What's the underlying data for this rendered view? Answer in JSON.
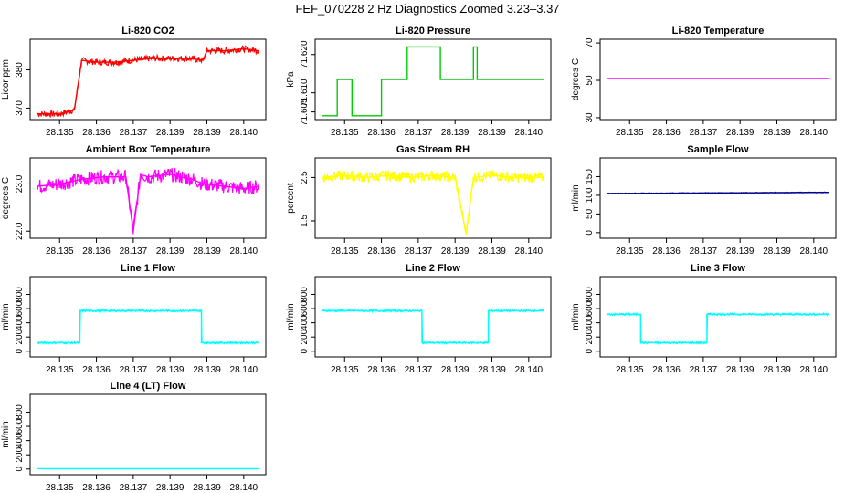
{
  "main_title": "FEF_070228  2 Hz Diagnostics Zoomed 3.23–3.37",
  "colors": {
    "co2": "#ff0000",
    "pressure": "#00cc00",
    "temperature": "#ff00ff",
    "box_temp": "#ff00ff",
    "rh": "#ffff00",
    "sample_flow": "#00008b",
    "line_flow": "#00ffff"
  },
  "chart_data": [
    {
      "type": "line",
      "title": "Li-820 CO2",
      "ylabel": "Licor ppm",
      "xlim": [
        28.1342,
        28.1406
      ],
      "ylim": [
        367,
        388
      ],
      "x_ticks": [
        "28.135",
        "28.136",
        "28.137",
        "28.139",
        "28.139",
        "28.140"
      ],
      "y_ticks": [
        "370",
        "380"
      ],
      "series": [
        {
          "color": "#ff0000",
          "x": [
            28.1344,
            28.135,
            28.1354,
            28.1356,
            28.136,
            28.1365,
            28.137,
            28.1375,
            28.138,
            28.1385,
            28.1389,
            28.139,
            28.1395,
            28.14,
            28.1404
          ],
          "values": [
            368.5,
            368.5,
            369.5,
            382.5,
            382.0,
            382.0,
            382.5,
            383.0,
            383.0,
            383.0,
            382.5,
            385.0,
            385.0,
            385.5,
            385.0
          ]
        }
      ]
    },
    {
      "type": "line",
      "title": "Li-820 Pressure",
      "ylabel": "kPa",
      "xlim": [
        28.1342,
        28.1406
      ],
      "ylim": [
        71.603,
        71.624
      ],
      "x_ticks": [
        "28.135",
        "28.136",
        "28.137",
        "28.139",
        "28.139",
        "28.140"
      ],
      "y_ticks": [
        "71.605",
        "71.610",
        "71.620"
      ],
      "series": [
        {
          "color": "#00cc00",
          "x": [
            28.1344,
            28.1348,
            28.1348,
            28.1352,
            28.1352,
            28.136,
            28.136,
            28.1367,
            28.1367,
            28.1376,
            28.1376,
            28.1385,
            28.1385,
            28.1386,
            28.1386,
            28.1404
          ],
          "values": [
            71.604,
            71.604,
            71.6135,
            71.6135,
            71.604,
            71.604,
            71.6135,
            71.6135,
            71.622,
            71.622,
            71.6135,
            71.6135,
            71.622,
            71.622,
            71.6135,
            71.6135
          ]
        }
      ]
    },
    {
      "type": "line",
      "title": "Li-820 Temperature",
      "ylabel": "degrees C",
      "xlim": [
        28.1342,
        28.1406
      ],
      "ylim": [
        29,
        72
      ],
      "x_ticks": [
        "28.135",
        "28.136",
        "28.137",
        "28.139",
        "28.139",
        "28.140"
      ],
      "y_ticks": [
        "30",
        "50",
        "70"
      ],
      "series": [
        {
          "color": "#ff00ff",
          "x": [
            28.1344,
            28.1404
          ],
          "values": [
            51,
            51
          ]
        }
      ]
    },
    {
      "type": "line",
      "title": "Ambient Box Temperature",
      "ylabel": "degrees C",
      "xlim": [
        28.1342,
        28.1406
      ],
      "ylim": [
        21.85,
        23.55
      ],
      "x_ticks": [
        "28.135",
        "28.136",
        "28.137",
        "28.139",
        "28.139",
        "28.140"
      ],
      "y_ticks": [
        "22.0",
        "23.0"
      ],
      "series": [
        {
          "color": "#ff00ff",
          "x": [
            28.1344,
            28.135,
            28.1356,
            28.1362,
            28.1368,
            28.137,
            28.1372,
            28.1374,
            28.138,
            28.1386,
            28.1389,
            28.1395,
            28.14,
            28.1404
          ],
          "values": [
            22.95,
            23.0,
            23.1,
            23.15,
            23.15,
            22.0,
            23.2,
            23.15,
            23.2,
            23.1,
            23.0,
            22.95,
            22.9,
            22.95
          ]
        }
      ]
    },
    {
      "type": "line",
      "title": "Gas Stream RH",
      "ylabel": "percent",
      "xlim": [
        28.1342,
        28.1406
      ],
      "ylim": [
        1.1,
        2.95
      ],
      "x_ticks": [
        "28.135",
        "28.136",
        "28.137",
        "28.139",
        "28.139",
        "28.140"
      ],
      "y_ticks": [
        "1.5",
        "2.5"
      ],
      "series": [
        {
          "color": "#ffff00",
          "x": [
            28.1344,
            28.135,
            28.1356,
            28.1362,
            28.1368,
            28.1374,
            28.138,
            28.1383,
            28.1385,
            28.139,
            28.1396,
            28.1404
          ],
          "values": [
            2.5,
            2.55,
            2.5,
            2.55,
            2.5,
            2.55,
            2.5,
            1.2,
            2.5,
            2.55,
            2.5,
            2.5
          ]
        }
      ]
    },
    {
      "type": "line",
      "title": "Sample Flow",
      "ylabel": "ml/min",
      "xlim": [
        28.1342,
        28.1406
      ],
      "ylim": [
        -15,
        200
      ],
      "x_ticks": [
        "28.135",
        "28.136",
        "28.137",
        "28.139",
        "28.139",
        "28.140"
      ],
      "y_ticks": [
        "0",
        "50",
        "100",
        "150"
      ],
      "series": [
        {
          "color": "#00008b",
          "x": [
            28.1344,
            28.1404
          ],
          "values": [
            105,
            108
          ]
        }
      ]
    },
    {
      "type": "line",
      "title": "Line 1 Flow",
      "ylabel": "ml/min",
      "xlim": [
        28.1342,
        28.1406
      ],
      "ylim": [
        -80,
        1050
      ],
      "x_ticks": [
        "28.135",
        "28.136",
        "28.137",
        "28.139",
        "28.139",
        "28.140"
      ],
      "y_ticks": [
        "0",
        "200",
        "400",
        "600",
        "800"
      ],
      "series": [
        {
          "color": "#00ffff",
          "x": [
            28.1344,
            28.13555,
            28.13555,
            28.13885,
            28.13885,
            28.1404
          ],
          "values": [
            120,
            120,
            570,
            570,
            120,
            120
          ]
        }
      ]
    },
    {
      "type": "line",
      "title": "Line 2 Flow",
      "ylabel": "ml/min",
      "xlim": [
        28.1342,
        28.1406
      ],
      "ylim": [
        -80,
        1050
      ],
      "x_ticks": [
        "28.135",
        "28.136",
        "28.137",
        "28.139",
        "28.139",
        "28.140"
      ],
      "y_ticks": [
        "0",
        "200",
        "400",
        "600",
        "800"
      ],
      "series": [
        {
          "color": "#00ffff",
          "x": [
            28.1344,
            28.1371,
            28.1371,
            28.1389,
            28.1389,
            28.1404
          ],
          "values": [
            570,
            570,
            120,
            120,
            570,
            570
          ]
        }
      ]
    },
    {
      "type": "line",
      "title": "Line 3 Flow",
      "ylabel": "ml/min",
      "xlim": [
        28.1342,
        28.1406
      ],
      "ylim": [
        -80,
        1050
      ],
      "x_ticks": [
        "28.135",
        "28.136",
        "28.137",
        "28.139",
        "28.139",
        "28.140"
      ],
      "y_ticks": [
        "0",
        "200",
        "400",
        "600",
        "800"
      ],
      "series": [
        {
          "color": "#00ffff",
          "x": [
            28.1344,
            28.1353,
            28.1353,
            28.1371,
            28.1371,
            28.1404
          ],
          "values": [
            520,
            520,
            120,
            120,
            520,
            520
          ]
        }
      ]
    },
    {
      "type": "line",
      "title": "Line 4 (LT) Flow",
      "ylabel": "ml/min",
      "xlim": [
        28.1342,
        28.1406
      ],
      "ylim": [
        -80,
        1050
      ],
      "x_ticks": [
        "28.135",
        "28.136",
        "28.137",
        "28.139",
        "28.139",
        "28.140"
      ],
      "y_ticks": [
        "0",
        "200",
        "400",
        "600",
        "800"
      ],
      "series": [
        {
          "color": "#00ffff",
          "x": [
            28.1344,
            28.1404
          ],
          "values": [
            5,
            5
          ]
        }
      ]
    }
  ]
}
